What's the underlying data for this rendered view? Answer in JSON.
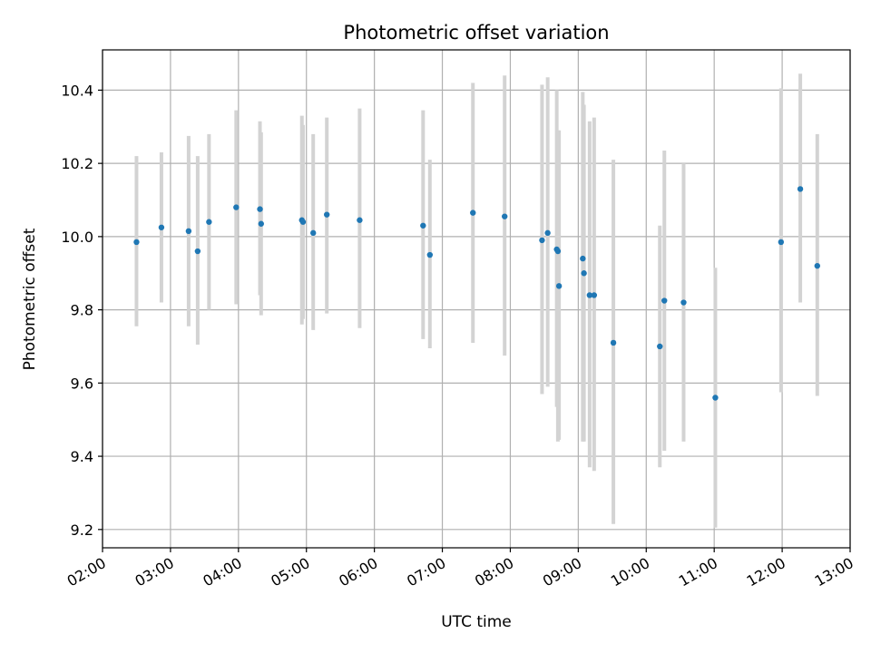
{
  "chart_data": {
    "type": "scatter",
    "title": "Photometric offset variation",
    "xlabel": "UTC time",
    "ylabel": "Photometric offset",
    "x_tick_labels": [
      "02:00",
      "03:00",
      "04:00",
      "05:00",
      "06:00",
      "07:00",
      "08:00",
      "09:00",
      "10:00",
      "11:00",
      "12:00",
      "13:00"
    ],
    "y_ticks": [
      9.2,
      9.4,
      9.6,
      9.8,
      10.0,
      10.2,
      10.4
    ],
    "y_tick_labels": [
      "9.2",
      "9.4",
      "9.6",
      "9.8",
      "10.0",
      "10.2",
      "10.4"
    ],
    "xlim": [
      "02:00",
      "13:00"
    ],
    "ylim": [
      9.15,
      10.51
    ],
    "grid": true,
    "colors": {
      "point": "#1f77b4",
      "errorbar": "#d3d3d3",
      "grid": "#b0b0b0",
      "axes": "#000000"
    },
    "points": [
      {
        "t": "02:30",
        "y": 9.985,
        "lo": 9.755,
        "hi": 10.22
      },
      {
        "t": "02:52",
        "y": 10.025,
        "lo": 9.82,
        "hi": 10.23
      },
      {
        "t": "03:16",
        "y": 10.015,
        "lo": 9.755,
        "hi": 10.275
      },
      {
        "t": "03:24",
        "y": 9.96,
        "lo": 9.705,
        "hi": 10.22
      },
      {
        "t": "03:34",
        "y": 10.04,
        "lo": 9.8,
        "hi": 10.28
      },
      {
        "t": "03:58",
        "y": 10.08,
        "lo": 9.815,
        "hi": 10.345
      },
      {
        "t": "04:19",
        "y": 10.075,
        "lo": 9.84,
        "hi": 10.315
      },
      {
        "t": "04:20",
        "y": 10.035,
        "lo": 9.785,
        "hi": 10.285
      },
      {
        "t": "04:56",
        "y": 10.045,
        "lo": 9.76,
        "hi": 10.33
      },
      {
        "t": "04:57",
        "y": 10.04,
        "lo": 9.775,
        "hi": 10.305
      },
      {
        "t": "05:06",
        "y": 10.01,
        "lo": 9.745,
        "hi": 10.28
      },
      {
        "t": "05:18",
        "y": 10.06,
        "lo": 9.79,
        "hi": 10.325
      },
      {
        "t": "05:47",
        "y": 10.045,
        "lo": 9.75,
        "hi": 10.35
      },
      {
        "t": "06:43",
        "y": 10.03,
        "lo": 9.72,
        "hi": 10.345
      },
      {
        "t": "06:49",
        "y": 9.95,
        "lo": 9.695,
        "hi": 10.21
      },
      {
        "t": "07:27",
        "y": 10.065,
        "lo": 9.71,
        "hi": 10.42
      },
      {
        "t": "07:55",
        "y": 10.055,
        "lo": 9.675,
        "hi": 10.44
      },
      {
        "t": "08:28",
        "y": 9.99,
        "lo": 9.57,
        "hi": 10.415
      },
      {
        "t": "08:33",
        "y": 10.01,
        "lo": 9.59,
        "hi": 10.435
      },
      {
        "t": "08:41",
        "y": 9.965,
        "lo": 9.535,
        "hi": 10.4
      },
      {
        "t": "08:42",
        "y": 9.96,
        "lo": 9.44,
        "hi": 10.29
      },
      {
        "t": "08:43",
        "y": 9.865,
        "lo": 9.445,
        "hi": 10.29
      },
      {
        "t": "09:04",
        "y": 9.94,
        "lo": 9.44,
        "hi": 10.395
      },
      {
        "t": "09:05",
        "y": 9.9,
        "lo": 9.44,
        "hi": 10.36
      },
      {
        "t": "09:10",
        "y": 9.84,
        "lo": 9.37,
        "hi": 10.315
      },
      {
        "t": "09:14",
        "y": 9.84,
        "lo": 9.36,
        "hi": 10.325
      },
      {
        "t": "09:31",
        "y": 9.71,
        "lo": 9.215,
        "hi": 10.21
      },
      {
        "t": "10:12",
        "y": 9.7,
        "lo": 9.37,
        "hi": 10.03
      },
      {
        "t": "10:16",
        "y": 9.825,
        "lo": 9.415,
        "hi": 10.235
      },
      {
        "t": "10:33",
        "y": 9.82,
        "lo": 9.44,
        "hi": 10.2
      },
      {
        "t": "11:01",
        "y": 9.56,
        "lo": 9.205,
        "hi": 9.915
      },
      {
        "t": "11:59",
        "y": 9.985,
        "lo": 9.575,
        "hi": 10.405
      },
      {
        "t": "12:16",
        "y": 10.13,
        "lo": 9.82,
        "hi": 10.445
      },
      {
        "t": "12:31",
        "y": 9.92,
        "lo": 9.565,
        "hi": 10.28
      }
    ]
  }
}
